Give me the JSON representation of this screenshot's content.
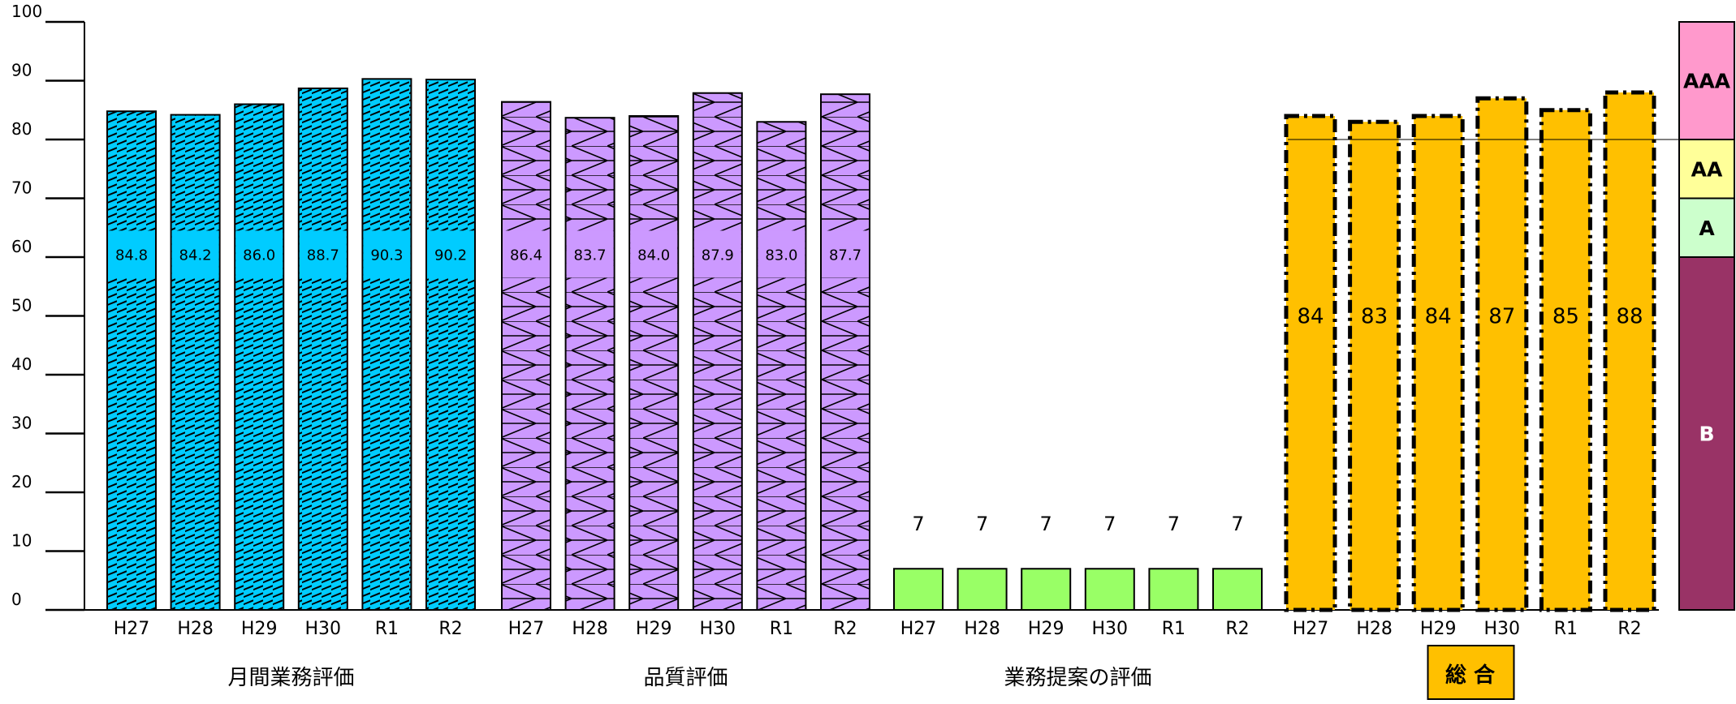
{
  "chart_data": {
    "type": "bar",
    "ylim": [
      0,
      100
    ],
    "y_ticks": [
      "0",
      "10",
      "20",
      "30",
      "40",
      "50",
      "60",
      "70",
      "80",
      "90",
      "100"
    ],
    "grid": false,
    "reference_line": 80,
    "groups": [
      {
        "name": "月間業務評価",
        "categories": [
          "H27",
          "H28",
          "H29",
          "H30",
          "R1",
          "R2"
        ],
        "values": [
          84.8,
          84.2,
          86.0,
          88.7,
          90.3,
          90.2
        ],
        "labels": [
          "84.8",
          "84.2",
          "86.0",
          "88.7",
          "90.3",
          "90.2"
        ],
        "color": "#00ccff",
        "pattern": "diagonal-stripes",
        "label_box": true
      },
      {
        "name": "品質評価",
        "categories": [
          "H27",
          "H28",
          "H29",
          "H30",
          "R1",
          "R2"
        ],
        "values": [
          86.4,
          83.7,
          84.0,
          87.9,
          83.0,
          87.7
        ],
        "labels": [
          "86.4",
          "83.7",
          "84.0",
          "87.9",
          "83.0",
          "87.7"
        ],
        "color": "#cc99ff",
        "pattern": "zigzag",
        "label_box": true
      },
      {
        "name": "業務提案の評価",
        "categories": [
          "H27",
          "H28",
          "H29",
          "H30",
          "R1",
          "R2"
        ],
        "values": [
          7,
          7,
          7,
          7,
          7,
          7
        ],
        "labels": [
          "7",
          "7",
          "7",
          "7",
          "7",
          "7"
        ],
        "color": "#99ff66",
        "pattern": "solid",
        "label_above": true
      },
      {
        "name": "総 合",
        "categories": [
          "H27",
          "H28",
          "H29",
          "H30",
          "R1",
          "R2"
        ],
        "values": [
          84,
          83,
          84,
          87,
          85,
          88
        ],
        "labels": [
          "84",
          "83",
          "84",
          "87",
          "85",
          "88"
        ],
        "color": "#ffc000",
        "pattern": "dash-dot-border",
        "boxed_name": true
      }
    ],
    "rating_scale": [
      {
        "label": "B",
        "from": 0,
        "to": 60,
        "color": "#993366"
      },
      {
        "label": "A",
        "from": 60,
        "to": 70,
        "color": "#ccffcc"
      },
      {
        "label": "AA",
        "from": 70,
        "to": 80,
        "color": "#ffff99"
      },
      {
        "label": "AAA",
        "from": 80,
        "to": 100,
        "color": "#ff99cc"
      }
    ]
  }
}
